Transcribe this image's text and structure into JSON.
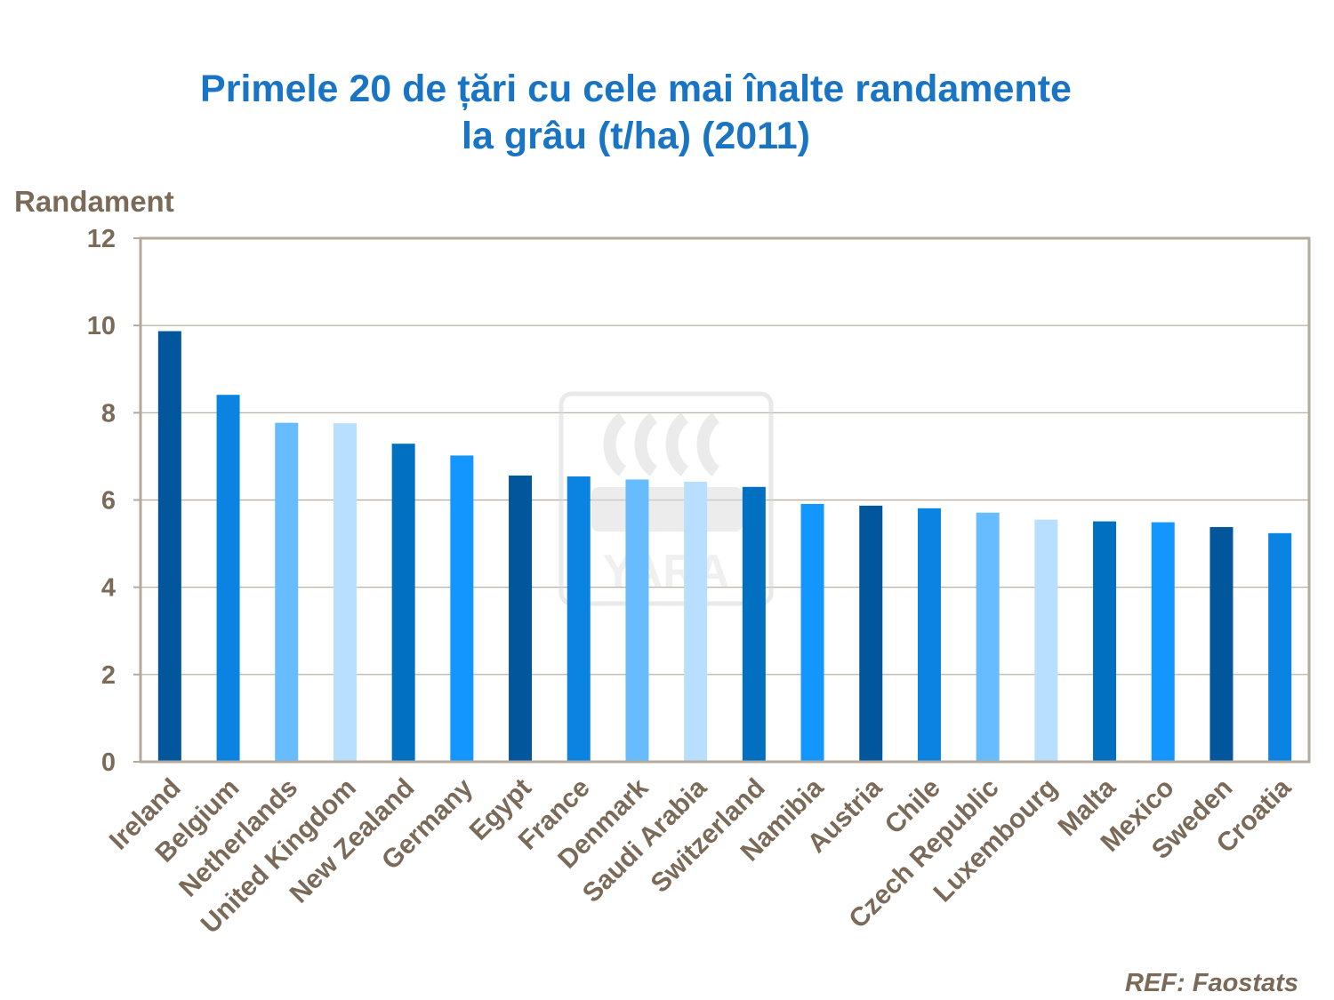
{
  "chart_data": {
    "type": "bar",
    "title": [
      "Primele 20 de țări cu cele mai înalte randamente",
      "la grâu (t/ha) (2011)"
    ],
    "ylabel": "Randament",
    "xlabel": "",
    "ylim": [
      0,
      12
    ],
    "yticks": [
      0,
      2,
      4,
      6,
      8,
      10,
      12
    ],
    "grid": true,
    "categories": [
      "Ireland",
      "Belgium",
      "Netherlands",
      "United Kingdom",
      "New Zealand",
      "Germany",
      "Egypt",
      "France",
      "Denmark",
      "Saudi Arabia",
      "Switzerland",
      "Namibia",
      "Austria",
      "Chile",
      "Czech Republic",
      "Luxembourg",
      "Malta",
      "Mexico",
      "Sweden",
      "Croatia"
    ],
    "values": [
      9.87,
      8.41,
      7.77,
      7.76,
      7.29,
      7.02,
      6.56,
      6.54,
      6.47,
      6.42,
      6.3,
      5.91,
      5.87,
      5.81,
      5.71,
      5.55,
      5.51,
      5.49,
      5.38,
      5.24
    ],
    "bar_colors": [
      "#02569b",
      "#0a83e3",
      "#66bcff",
      "#b8dfff",
      "#0170c1",
      "#1496ff",
      "#02569b",
      "#0a83e3",
      "#66bcff",
      "#b8dfff",
      "#0170c1",
      "#1496ff",
      "#02569b",
      "#0a83e3",
      "#66bcff",
      "#b8dfff",
      "#0170c1",
      "#1496ff",
      "#02569b",
      "#0a83e3"
    ]
  },
  "watermark": {
    "text": "YARA"
  },
  "source": "REF: Faostats",
  "colors": {
    "title": "#1a74c4",
    "text": "#7b6a58",
    "frame": "#b5a99c",
    "grid": "#b3a899"
  }
}
